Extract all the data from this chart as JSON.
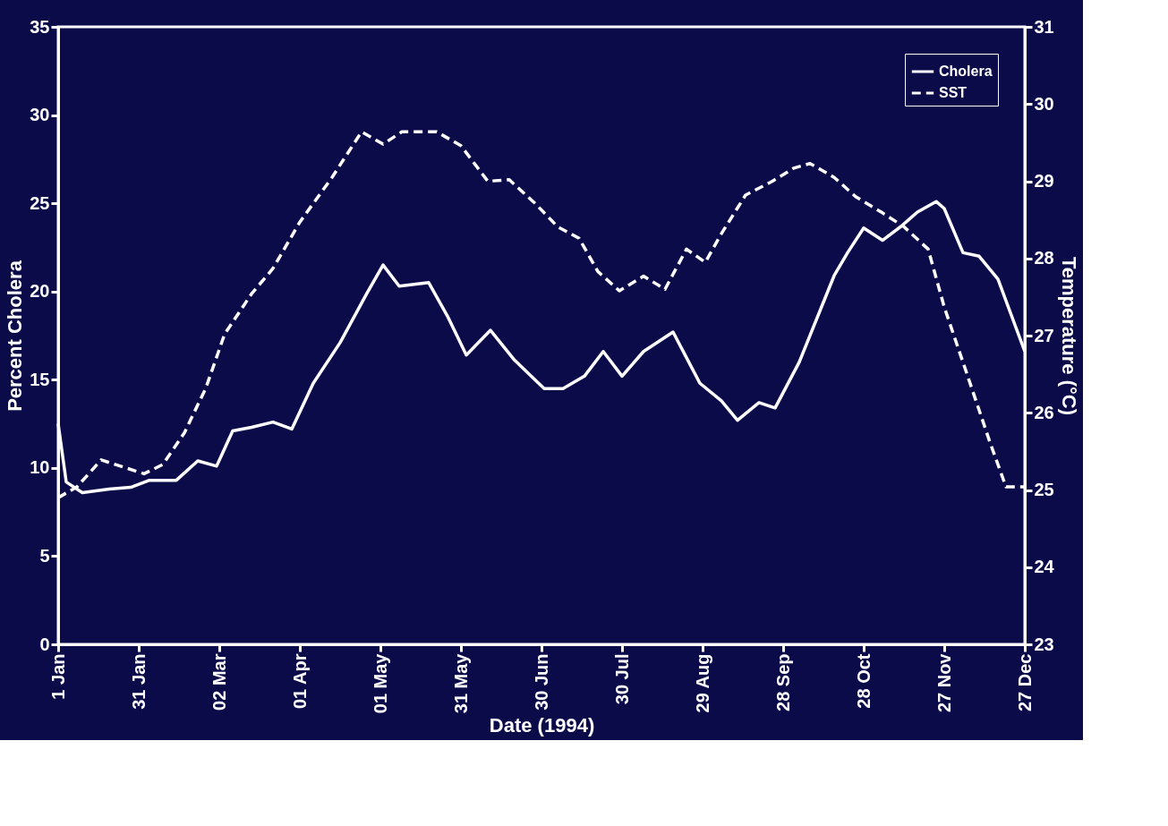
{
  "chart_data": {
    "type": "line",
    "xlabel": "Date (1994)",
    "ylabel": "Percent Cholera",
    "y2label": "Temperature (°C)",
    "xlim": [
      "1994-01-01",
      "1994-12-27"
    ],
    "xticks": [
      {
        "value": "1994-01-01",
        "label": "1 Jan"
      },
      {
        "value": "1994-01-31",
        "label": "31 Jan"
      },
      {
        "value": "1994-03-02",
        "label": "02 Mar"
      },
      {
        "value": "1994-04-01",
        "label": "01 Apr"
      },
      {
        "value": "1994-05-01",
        "label": "01 May"
      },
      {
        "value": "1994-05-31",
        "label": "31 May"
      },
      {
        "value": "1994-06-30",
        "label": "30 Jun"
      },
      {
        "value": "1994-07-30",
        "label": "30 Jul"
      },
      {
        "value": "1994-08-29",
        "label": "29 Aug"
      },
      {
        "value": "1994-09-28",
        "label": "28 Sep"
      },
      {
        "value": "1994-10-28",
        "label": "28 Oct"
      },
      {
        "value": "1994-11-27",
        "label": "27 Nov"
      },
      {
        "value": "1994-12-27",
        "label": "27 Dec"
      }
    ],
    "ylim": [
      0,
      35
    ],
    "yticks": [
      0,
      5,
      10,
      15,
      20,
      25,
      30,
      35
    ],
    "y2lim": [
      23,
      31
    ],
    "y2ticks": [
      23,
      24,
      25,
      26,
      27,
      28,
      29,
      30,
      31
    ],
    "grid": false,
    "legend": "top right",
    "series": [
      {
        "name": "Cholera",
        "color": "#ffffff",
        "line_style": "solid",
        "x": [
          "1994-01-01",
          "1994-01-04",
          "1994-01-10",
          "1994-01-20",
          "1994-01-28",
          "1994-02-04",
          "1994-02-14",
          "1994-02-22",
          "1994-03-01",
          "1994-03-07",
          "1994-03-14",
          "1994-03-22",
          "1994-03-29",
          "1994-04-06",
          "1994-04-16",
          "1994-04-26",
          "1994-05-02",
          "1994-05-08",
          "1994-05-19",
          "1994-05-26",
          "1994-06-02",
          "1994-06-11",
          "1994-06-20",
          "1994-07-01",
          "1994-07-08",
          "1994-07-16",
          "1994-07-23",
          "1994-07-30",
          "1994-08-07",
          "1994-08-18",
          "1994-08-28",
          "1994-09-05",
          "1994-09-11",
          "1994-09-19",
          "1994-09-25",
          "1994-10-04",
          "1994-10-17",
          "1994-10-22",
          "1994-10-28",
          "1994-11-04",
          "1994-11-11",
          "1994-11-17",
          "1994-11-24",
          "1994-11-27",
          "1994-12-04",
          "1994-12-10",
          "1994-12-17",
          "1994-12-27"
        ],
        "values": [
          12.5,
          9.2,
          8.6,
          8.8,
          8.9,
          9.3,
          9.3,
          10.4,
          10.1,
          12.1,
          12.3,
          12.6,
          12.2,
          14.8,
          17.1,
          19.9,
          21.5,
          20.3,
          20.5,
          18.6,
          16.4,
          17.8,
          16.1,
          14.5,
          14.5,
          15.2,
          16.6,
          15.2,
          16.6,
          17.7,
          14.8,
          13.8,
          12.7,
          13.7,
          13.4,
          16.0,
          20.9,
          22.2,
          23.6,
          22.9,
          23.7,
          24.5,
          25.1,
          24.7,
          22.2,
          22.0,
          20.7,
          16.6
        ]
      },
      {
        "name": "SST",
        "color": "#ffffff",
        "line_style": "dashed",
        "axis": "y2",
        "x": [
          "1994-01-01",
          "1994-01-08",
          "1994-01-17",
          "1994-01-25",
          "1994-02-02",
          "1994-02-09",
          "1994-02-17",
          "1994-02-25",
          "1994-03-04",
          "1994-03-14",
          "1994-03-22",
          "1994-04-01",
          "1994-04-13",
          "1994-04-24",
          "1994-05-02",
          "1994-05-09",
          "1994-05-22",
          "1994-05-31",
          "1994-06-10",
          "1994-06-18",
          "1994-06-28",
          "1994-07-06",
          "1994-07-14",
          "1994-07-21",
          "1994-07-29",
          "1994-08-07",
          "1994-08-15",
          "1994-08-23",
          "1994-08-30",
          "1994-09-05",
          "1994-09-14",
          "1994-09-24",
          "1994-10-02",
          "1994-10-08",
          "1994-10-17",
          "1994-10-25",
          "1994-11-04",
          "1994-11-12",
          "1994-11-21",
          "1994-11-27",
          "1994-12-05",
          "1994-12-14",
          "1994-12-20",
          "1994-12-27"
        ],
        "values": [
          24.9,
          25.04,
          25.39,
          25.3,
          25.21,
          25.33,
          25.74,
          26.32,
          27.02,
          27.54,
          27.87,
          28.47,
          29.05,
          29.64,
          29.48,
          29.64,
          29.64,
          29.46,
          29.0,
          29.02,
          28.7,
          28.41,
          28.26,
          27.83,
          27.58,
          27.77,
          27.6,
          28.12,
          27.95,
          28.32,
          28.82,
          29.0,
          29.17,
          29.23,
          29.05,
          28.8,
          28.59,
          28.41,
          28.12,
          27.37,
          26.55,
          25.62,
          25.04,
          25.04
        ]
      }
    ]
  }
}
